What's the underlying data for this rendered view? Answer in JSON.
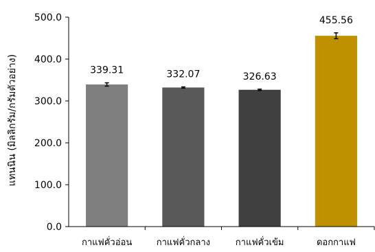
{
  "chart_data": {
    "type": "bar",
    "categories": [
      "กาแฟคั่วอ่อน",
      "กาแฟคั่วกลาง",
      "กาแฟคั่วเข้ม",
      "ดอกกาแฟ"
    ],
    "values": [
      339.31,
      332.07,
      326.63,
      455.56
    ],
    "value_labels": [
      "339.31",
      "332.07",
      "326.63",
      "455.56"
    ],
    "error": [
      4,
      1.5,
      1.5,
      7
    ],
    "colors": [
      "#7f7f7f",
      "#595959",
      "#404040",
      "#bf9000"
    ],
    "ylabel": "แทนนิน (มิลลิกรัม/กรัมตัวอย่าง)",
    "xlabel": "",
    "ylim": [
      0,
      500
    ],
    "yticks": [
      0,
      100,
      200,
      300,
      400,
      500
    ],
    "ytick_labels": [
      "0.0",
      "100.0",
      "200.0",
      "300.0",
      "400.0",
      "500.0"
    ],
    "grid": false,
    "legend": "none"
  }
}
